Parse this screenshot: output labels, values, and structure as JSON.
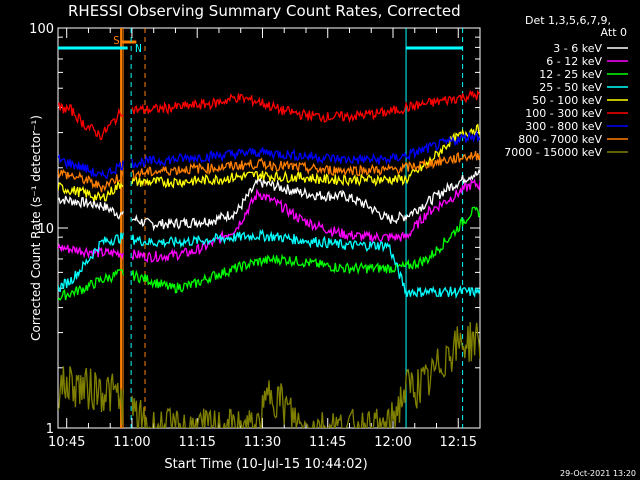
{
  "chart_data": {
    "type": "line",
    "title": "RHESSI Observing Summary Count Rates, Corrected",
    "xlabel": "Start Time (10-Jul-15 10:44:02)",
    "ylabel": "Corrected Count Rate (s⁻¹ detector⁻¹)",
    "y_scale": "log",
    "ylim": [
      1,
      100
    ],
    "xlim_minutes": [
      -1,
      96
    ],
    "x_tick_labels": [
      "10:45",
      "11:00",
      "11:15",
      "11:30",
      "11:45",
      "12:00",
      "12:15"
    ],
    "x_tick_minutes": [
      1,
      16,
      31,
      46,
      61,
      76,
      91
    ],
    "y_tick_labels": [
      "1",
      "10",
      "100"
    ],
    "y_tick_values": [
      1,
      10,
      100
    ],
    "legend_header": [
      "Det 1,3,5,6,7,9,",
      "Att 0"
    ],
    "legend_position": "right",
    "timestamp": "29-Oct-2021 13:20",
    "annotations": [
      {
        "label": "S",
        "color": "#ff7f00",
        "minute": 13.5
      },
      {
        "label": "N",
        "color": "#00ffff",
        "minute": 16.5
      }
    ],
    "series": [
      {
        "name": "3 - 6 keV",
        "color": "#ffffff",
        "x": [
          -1,
          4,
          9,
          14,
          20,
          25,
          30,
          35,
          40,
          45,
          50,
          55,
          60,
          65,
          70,
          75,
          79,
          84,
          89,
          94
        ],
        "y": [
          14,
          13.5,
          13,
          11.5,
          10.5,
          10.5,
          10.7,
          11,
          12,
          17,
          16,
          15,
          14.5,
          14.5,
          13,
          11,
          11.5,
          13.5,
          16,
          18.5
        ]
      },
      {
        "name": "6 - 12 keV",
        "color": "#ff00ff",
        "x": [
          -1,
          9,
          14,
          20,
          25,
          30,
          35,
          40,
          45,
          50,
          55,
          60,
          65,
          70,
          75,
          79,
          84,
          89,
          94
        ],
        "y": [
          8,
          7.5,
          7.5,
          7.2,
          7.3,
          7.6,
          8.5,
          10,
          15,
          13,
          11,
          10,
          9.3,
          9,
          9,
          9,
          12,
          14,
          16.5
        ]
      },
      {
        "name": "12 - 25 keV",
        "color": "#00ff00",
        "x": [
          -1,
          5,
          9,
          14,
          20,
          25,
          30,
          35,
          40,
          45,
          50,
          55,
          60,
          65,
          70,
          75,
          79,
          84,
          89,
          94
        ],
        "y": [
          4.5,
          5,
          5.5,
          6,
          5.5,
          5,
          5.2,
          5.8,
          6.3,
          6.8,
          7,
          6.8,
          6.5,
          6.3,
          6.3,
          6.3,
          6.4,
          7,
          9,
          12
        ]
      },
      {
        "name": "25 - 50 keV",
        "color": "#00ffff",
        "x": [
          -1,
          2,
          5,
          9,
          14,
          20,
          25,
          30,
          35,
          40,
          45,
          50,
          55,
          60,
          65,
          70,
          75,
          79,
          84,
          89,
          94
        ],
        "y": [
          5,
          5.5,
          6.5,
          8.5,
          9,
          8.5,
          8.5,
          8.6,
          8.8,
          9,
          9.2,
          9,
          8.7,
          8.5,
          8.2,
          8.2,
          8.2,
          4.8,
          4.8,
          4.8,
          4.8
        ]
      },
      {
        "name": "50 - 100 keV",
        "color": "#ffff00",
        "x": [
          -1,
          5,
          9,
          14,
          20,
          25,
          30,
          35,
          40,
          45,
          50,
          55,
          60,
          65,
          70,
          75,
          79,
          84,
          89,
          94
        ],
        "y": [
          16,
          15,
          14,
          17,
          17,
          17,
          17.2,
          17.5,
          18,
          18.5,
          18,
          18,
          17.5,
          17.5,
          17.5,
          17.5,
          17.5,
          21,
          27,
          31
        ]
      },
      {
        "name": "100 - 300 keV",
        "color": "#ff0000",
        "x": [
          -1,
          2,
          5,
          9,
          14,
          20,
          25,
          30,
          35,
          40,
          45,
          50,
          55,
          60,
          65,
          70,
          75,
          79,
          84,
          89,
          94
        ],
        "y": [
          40,
          39,
          33,
          29,
          39,
          39,
          40,
          41,
          42,
          45,
          43,
          39,
          37,
          36,
          36,
          37,
          38,
          40,
          42,
          44,
          46
        ]
      },
      {
        "name": "300 - 800 keV",
        "color": "#0000ff",
        "x": [
          -1,
          5,
          9,
          14,
          20,
          25,
          30,
          35,
          40,
          45,
          50,
          55,
          60,
          65,
          70,
          75,
          79,
          84,
          89,
          94
        ],
        "y": [
          22,
          20,
          18,
          21,
          21.5,
          22,
          22.5,
          23,
          23.5,
          24,
          23.5,
          23,
          22.5,
          22,
          22,
          22,
          23,
          25,
          27,
          29
        ]
      },
      {
        "name": "800 - 7000 keV",
        "color": "#ff7f00",
        "x": [
          -1,
          5,
          9,
          14,
          20,
          25,
          30,
          35,
          40,
          45,
          50,
          55,
          60,
          65,
          70,
          75,
          79,
          84,
          89,
          94
        ],
        "y": [
          19,
          17.5,
          16,
          18.5,
          19,
          19.5,
          19.8,
          20,
          20.5,
          21,
          20.5,
          20,
          19.5,
          19.5,
          19.5,
          19.5,
          20,
          21,
          22,
          23
        ]
      },
      {
        "name": "7000 - 15000 keV",
        "color": "#808000",
        "x": [
          -1,
          2,
          5,
          8,
          12,
          20,
          30,
          40,
          45,
          48,
          55,
          65,
          75,
          79,
          84,
          89,
          94
        ],
        "y": [
          1.6,
          1.7,
          1.6,
          1.6,
          1.5,
          1,
          1,
          1,
          1,
          1.6,
          1,
          1,
          1,
          1.6,
          1.7,
          2.5,
          2.8
        ]
      }
    ]
  }
}
